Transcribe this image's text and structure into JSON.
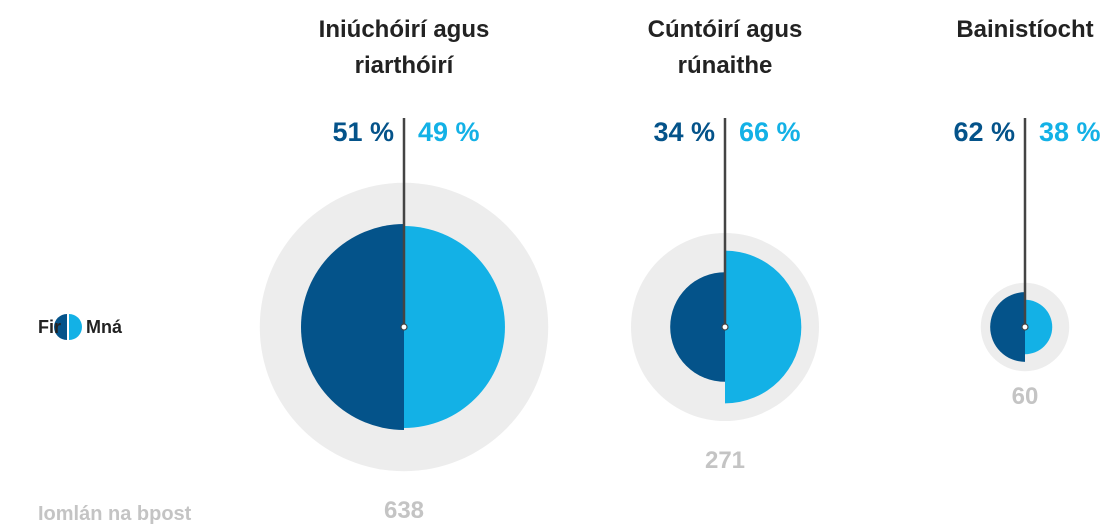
{
  "chart_data": {
    "type": "split-bubble",
    "categories": [
      "Iniúchóirí agus riarthóirí",
      "Cúntóirí agus rúnaithe",
      "Bainistíocht"
    ],
    "series": [
      {
        "name": "Fir",
        "color": "#04538a",
        "values": [
          51,
          34,
          62
        ],
        "value_labels": [
          "51 %",
          "34 %",
          "62 %"
        ]
      },
      {
        "name": "Mná",
        "color": "#13b1e6",
        "values": [
          49,
          66,
          38
        ],
        "value_labels": [
          "49 %",
          "66 %",
          "38 %"
        ]
      }
    ],
    "totals_label": "Iomlán na bpost",
    "totals": [
      638,
      271,
      60
    ],
    "totals_color": "#ededed"
  }
}
